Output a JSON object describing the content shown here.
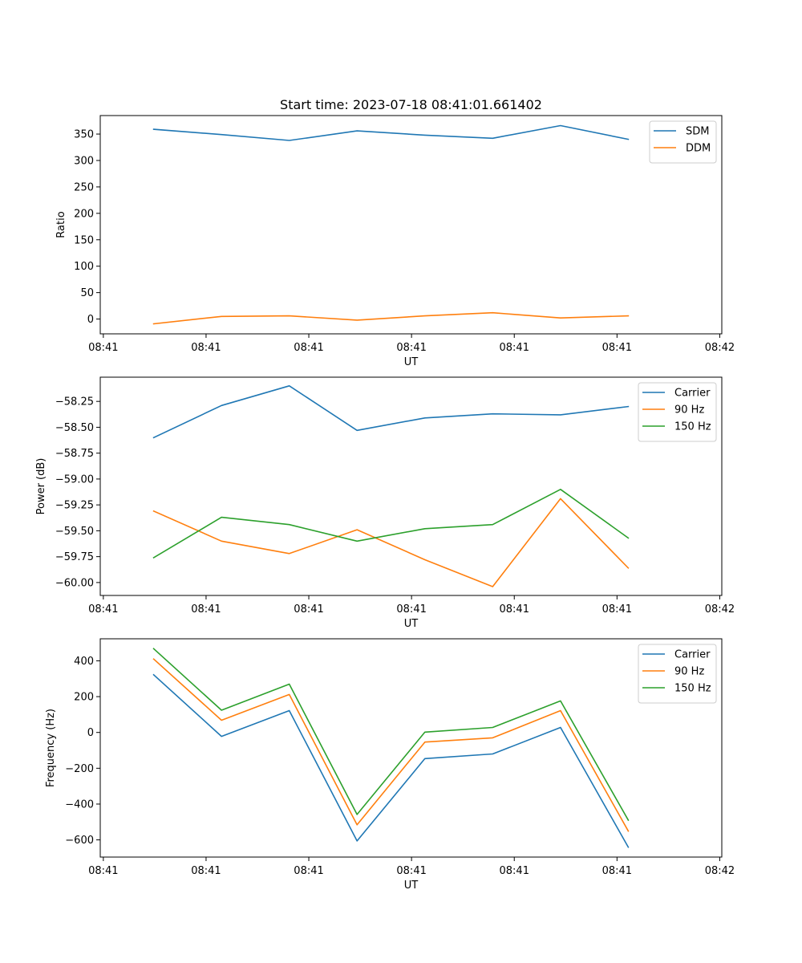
{
  "chart_data": {
    "type": "line",
    "title": "Start time: 2023-07-18 08:41:01.661402",
    "x_tick_labels": [
      "08:41",
      "08:41",
      "08:41",
      "08:41",
      "08:41",
      "08:41",
      "08:42"
    ],
    "x_tick_values": [
      0,
      1,
      2,
      3,
      4,
      5,
      6
    ],
    "xlim": [
      -0.03,
      6.02
    ],
    "x": [
      0.49,
      1.15,
      1.81,
      2.47,
      3.13,
      3.79,
      4.45,
      5.11
    ],
    "subplots": [
      {
        "xlabel": "UT",
        "ylabel": "Ratio",
        "ylim": [
          -28,
          385
        ],
        "yticks": [
          0,
          50,
          100,
          150,
          200,
          250,
          300,
          350
        ],
        "ytick_labels": [
          "0",
          "50",
          "100",
          "150",
          "200",
          "250",
          "300",
          "350"
        ],
        "legend": "top-right",
        "series": [
          {
            "name": "SDM",
            "color": "#1f77b4",
            "values": [
              359,
              349,
              338,
              356,
              348,
              342,
              366,
              340
            ]
          },
          {
            "name": "DDM",
            "color": "#ff7f0e",
            "values": [
              -9,
              5,
              6,
              -2,
              6,
              12,
              2,
              6
            ]
          }
        ]
      },
      {
        "xlabel": "UT",
        "ylabel": "Power (dB)",
        "ylim": [
          -60.125,
          -58.016
        ],
        "yticks": [
          -58.25,
          -58.5,
          -58.75,
          -59.0,
          -59.25,
          -59.5,
          -59.75,
          -60.0
        ],
        "ytick_labels": [
          "−58.25",
          "−58.50",
          "−58.75",
          "−59.00",
          "−59.25",
          "−59.50",
          "−59.75",
          "−60.00"
        ],
        "legend": "top-right",
        "series": [
          {
            "name": "Carrier",
            "color": "#1f77b4",
            "values": [
              -58.6,
              -58.29,
              -58.1,
              -58.53,
              -58.41,
              -58.37,
              -58.38,
              -58.3
            ]
          },
          {
            "name": "90 Hz",
            "color": "#ff7f0e",
            "values": [
              -59.31,
              -59.6,
              -59.72,
              -59.49,
              -59.78,
              -60.04,
              -59.19,
              -59.86
            ]
          },
          {
            "name": "150 Hz",
            "color": "#2ca02c",
            "values": [
              -59.76,
              -59.37,
              -59.44,
              -59.6,
              -59.48,
              -59.44,
              -59.1,
              -59.57
            ]
          }
        ]
      },
      {
        "xlabel": "UT",
        "ylabel": "Frequency (Hz)",
        "ylim": [
          -696,
          523
        ],
        "yticks": [
          400,
          200,
          0,
          -200,
          -400,
          -600
        ],
        "ytick_labels": [
          "400",
          "200",
          "0",
          "−200",
          "−400",
          "−600"
        ],
        "legend": "top-right",
        "series": [
          {
            "name": "Carrier",
            "color": "#1f77b4",
            "values": [
              322,
              -22,
              122,
              -606,
              -146,
              -120,
              28,
              -641
            ]
          },
          {
            "name": "90 Hz",
            "color": "#ff7f0e",
            "values": [
              410,
              68,
              212,
              -516,
              -54,
              -30,
              122,
              -551
            ]
          },
          {
            "name": "150 Hz",
            "color": "#2ca02c",
            "values": [
              468,
              124,
              270,
              -458,
              2,
              28,
              176,
              -490
            ]
          }
        ]
      }
    ]
  }
}
